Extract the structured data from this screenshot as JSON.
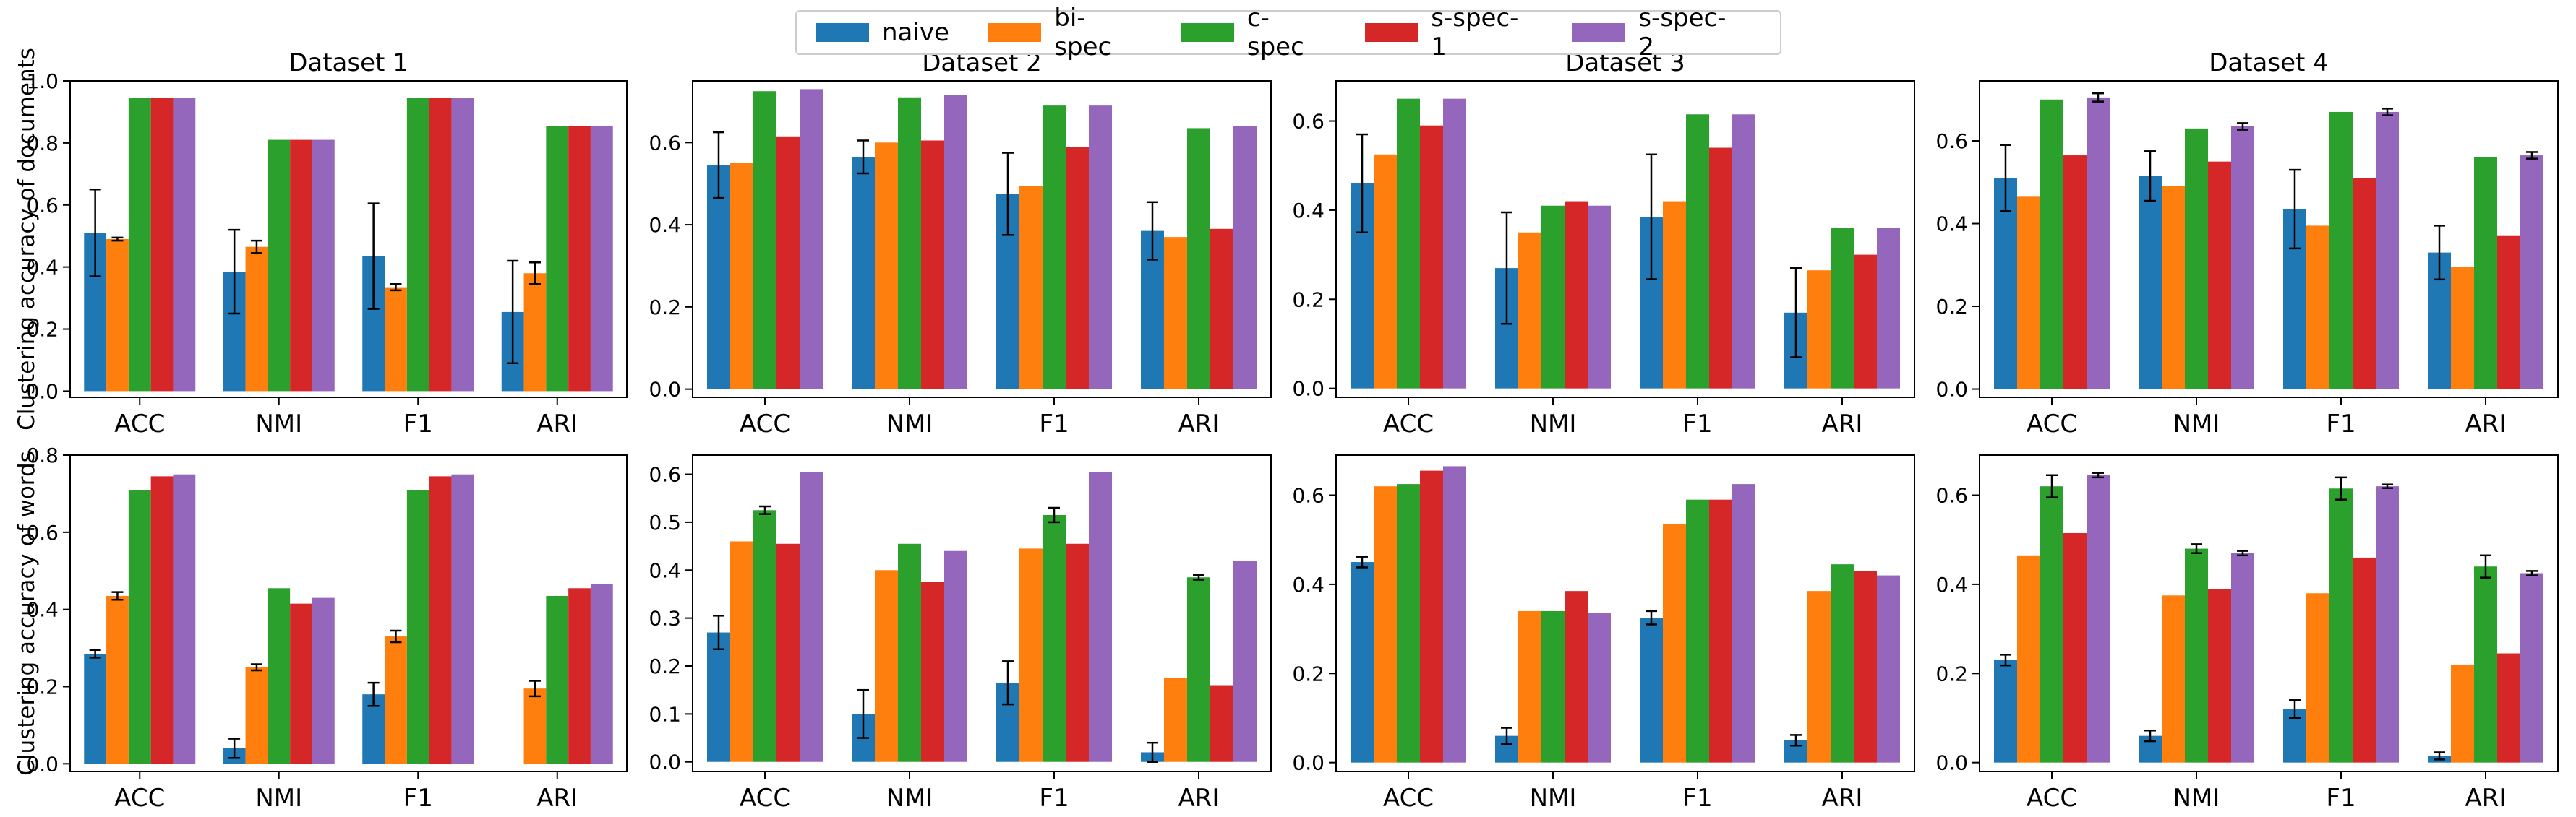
{
  "legend": [
    {
      "name": "naive",
      "color": "#1f77b4"
    },
    {
      "name": "bi-spec",
      "color": "#ff7f0e"
    },
    {
      "name": "c-spec",
      "color": "#2ca02c"
    },
    {
      "name": "s-spec-1",
      "color": "#d62728"
    },
    {
      "name": "s-spec-2",
      "color": "#9467bd"
    }
  ],
  "row_labels": [
    "Clustering accuracy of documents",
    "Clustering accuracy of words"
  ],
  "chart_data": [
    {
      "type": "bar",
      "title": "Dataset 1",
      "ylabel": "Clustering accuracy of documents",
      "categories": [
        "ACC",
        "NMI",
        "F1",
        "ARI"
      ],
      "ylim": [
        -0.02,
        1.0
      ],
      "yticks": [
        0.0,
        0.2,
        0.4,
        0.6,
        0.8,
        1.0
      ],
      "series": [
        {
          "name": "naive",
          "values": [
            0.51,
            0.385,
            0.435,
            0.255
          ],
          "errors": [
            0.14,
            0.135,
            0.17,
            0.165
          ]
        },
        {
          "name": "bi-spec",
          "values": [
            0.49,
            0.465,
            0.335,
            0.38
          ],
          "errors": [
            0.005,
            0.02,
            0.01,
            0.035
          ]
        },
        {
          "name": "c-spec",
          "values": [
            0.945,
            0.81,
            0.945,
            0.855
          ],
          "errors": [
            0,
            0,
            0,
            0
          ]
        },
        {
          "name": "s-spec-1",
          "values": [
            0.945,
            0.81,
            0.945,
            0.855
          ],
          "errors": [
            0,
            0,
            0,
            0
          ]
        },
        {
          "name": "s-spec-2",
          "values": [
            0.945,
            0.81,
            0.945,
            0.855
          ],
          "errors": [
            0,
            0,
            0,
            0
          ]
        }
      ]
    },
    {
      "type": "bar",
      "title": "Dataset 2",
      "ylabel": "",
      "categories": [
        "ACC",
        "NMI",
        "F1",
        "ARI"
      ],
      "ylim": [
        -0.02,
        0.75
      ],
      "yticks": [
        0.0,
        0.2,
        0.4,
        0.6
      ],
      "series": [
        {
          "name": "naive",
          "values": [
            0.545,
            0.565,
            0.475,
            0.385
          ],
          "errors": [
            0.08,
            0.04,
            0.1,
            0.07
          ]
        },
        {
          "name": "bi-spec",
          "values": [
            0.55,
            0.6,
            0.495,
            0.37
          ],
          "errors": [
            0,
            0,
            0,
            0
          ]
        },
        {
          "name": "c-spec",
          "values": [
            0.725,
            0.71,
            0.69,
            0.635
          ],
          "errors": [
            0,
            0,
            0,
            0
          ]
        },
        {
          "name": "s-spec-1",
          "values": [
            0.615,
            0.605,
            0.59,
            0.39
          ],
          "errors": [
            0,
            0,
            0,
            0
          ]
        },
        {
          "name": "s-spec-2",
          "values": [
            0.73,
            0.715,
            0.69,
            0.64
          ],
          "errors": [
            0,
            0,
            0,
            0
          ]
        }
      ]
    },
    {
      "type": "bar",
      "title": "Dataset 3",
      "ylabel": "",
      "categories": [
        "ACC",
        "NMI",
        "F1",
        "ARI"
      ],
      "ylim": [
        -0.02,
        0.69
      ],
      "yticks": [
        0.0,
        0.2,
        0.4,
        0.6
      ],
      "series": [
        {
          "name": "naive",
          "values": [
            0.46,
            0.27,
            0.385,
            0.17
          ],
          "errors": [
            0.11,
            0.125,
            0.14,
            0.1
          ]
        },
        {
          "name": "bi-spec",
          "values": [
            0.525,
            0.35,
            0.42,
            0.265
          ],
          "errors": [
            0,
            0,
            0,
            0
          ]
        },
        {
          "name": "c-spec",
          "values": [
            0.65,
            0.41,
            0.615,
            0.36
          ],
          "errors": [
            0,
            0,
            0,
            0
          ]
        },
        {
          "name": "s-spec-1",
          "values": [
            0.59,
            0.42,
            0.54,
            0.3
          ],
          "errors": [
            0,
            0,
            0,
            0
          ]
        },
        {
          "name": "s-spec-2",
          "values": [
            0.65,
            0.41,
            0.615,
            0.36
          ],
          "errors": [
            0,
            0,
            0,
            0
          ]
        }
      ]
    },
    {
      "type": "bar",
      "title": "Dataset 4",
      "ylabel": "",
      "categories": [
        "ACC",
        "NMI",
        "F1",
        "ARI"
      ],
      "ylim": [
        -0.02,
        0.745
      ],
      "yticks": [
        0.0,
        0.2,
        0.4,
        0.6
      ],
      "series": [
        {
          "name": "naive",
          "values": [
            0.51,
            0.515,
            0.435,
            0.33
          ],
          "errors": [
            0.08,
            0.06,
            0.095,
            0.065
          ]
        },
        {
          "name": "bi-spec",
          "values": [
            0.465,
            0.49,
            0.395,
            0.295
          ],
          "errors": [
            0,
            0,
            0,
            0
          ]
        },
        {
          "name": "c-spec",
          "values": [
            0.7,
            0.63,
            0.67,
            0.56
          ],
          "errors": [
            0,
            0,
            0,
            0
          ]
        },
        {
          "name": "s-spec-1",
          "values": [
            0.565,
            0.55,
            0.51,
            0.37
          ],
          "errors": [
            0,
            0,
            0,
            0
          ]
        },
        {
          "name": "s-spec-2",
          "values": [
            0.705,
            0.635,
            0.67,
            0.565
          ],
          "errors": [
            0.01,
            0.008,
            0.008,
            0.008
          ]
        }
      ]
    },
    {
      "type": "bar",
      "title": "",
      "ylabel": "Clustering accuracy of words",
      "categories": [
        "ACC",
        "NMI",
        "F1",
        "ARI"
      ],
      "ylim": [
        -0.02,
        0.8
      ],
      "yticks": [
        0.0,
        0.2,
        0.4,
        0.6,
        0.8
      ],
      "series": [
        {
          "name": "naive",
          "values": [
            0.285,
            0.04,
            0.18,
            0.0
          ],
          "errors": [
            0.01,
            0.025,
            0.03,
            0
          ]
        },
        {
          "name": "bi-spec",
          "values": [
            0.435,
            0.25,
            0.33,
            0.195
          ],
          "errors": [
            0.01,
            0.008,
            0.015,
            0.02
          ]
        },
        {
          "name": "c-spec",
          "values": [
            0.71,
            0.455,
            0.71,
            0.435
          ],
          "errors": [
            0,
            0,
            0,
            0
          ]
        },
        {
          "name": "s-spec-1",
          "values": [
            0.745,
            0.415,
            0.745,
            0.455
          ],
          "errors": [
            0,
            0,
            0,
            0
          ]
        },
        {
          "name": "s-spec-2",
          "values": [
            0.75,
            0.43,
            0.75,
            0.465
          ],
          "errors": [
            0,
            0,
            0,
            0
          ]
        }
      ]
    },
    {
      "type": "bar",
      "title": "",
      "ylabel": "",
      "categories": [
        "ACC",
        "NMI",
        "F1",
        "ARI"
      ],
      "ylim": [
        -0.02,
        0.64
      ],
      "yticks": [
        0.0,
        0.1,
        0.2,
        0.3,
        0.4,
        0.5,
        0.6
      ],
      "series": [
        {
          "name": "naive",
          "values": [
            0.27,
            0.1,
            0.165,
            0.02
          ],
          "errors": [
            0.035,
            0.05,
            0.045,
            0.02
          ]
        },
        {
          "name": "bi-spec",
          "values": [
            0.46,
            0.4,
            0.445,
            0.175
          ],
          "errors": [
            0,
            0,
            0,
            0
          ]
        },
        {
          "name": "c-spec",
          "values": [
            0.525,
            0.455,
            0.515,
            0.385
          ],
          "errors": [
            0.008,
            0,
            0.015,
            0.005
          ]
        },
        {
          "name": "s-spec-1",
          "values": [
            0.455,
            0.375,
            0.455,
            0.16
          ],
          "errors": [
            0,
            0,
            0,
            0
          ]
        },
        {
          "name": "s-spec-2",
          "values": [
            0.605,
            0.44,
            0.605,
            0.42
          ],
          "errors": [
            0,
            0,
            0,
            0
          ]
        }
      ]
    },
    {
      "type": "bar",
      "title": "",
      "ylabel": "",
      "categories": [
        "ACC",
        "NMI",
        "F1",
        "ARI"
      ],
      "ylim": [
        -0.02,
        0.69
      ],
      "yticks": [
        0.0,
        0.2,
        0.4,
        0.6
      ],
      "series": [
        {
          "name": "naive",
          "values": [
            0.45,
            0.06,
            0.325,
            0.05
          ],
          "errors": [
            0.012,
            0.018,
            0.015,
            0.012
          ]
        },
        {
          "name": "bi-spec",
          "values": [
            0.62,
            0.34,
            0.535,
            0.385
          ],
          "errors": [
            0,
            0,
            0,
            0
          ]
        },
        {
          "name": "c-spec",
          "values": [
            0.625,
            0.34,
            0.59,
            0.445
          ],
          "errors": [
            0,
            0,
            0,
            0
          ]
        },
        {
          "name": "s-spec-1",
          "values": [
            0.655,
            0.385,
            0.59,
            0.43
          ],
          "errors": [
            0,
            0,
            0,
            0
          ]
        },
        {
          "name": "s-spec-2",
          "values": [
            0.665,
            0.335,
            0.625,
            0.42
          ],
          "errors": [
            0,
            0,
            0,
            0
          ]
        }
      ]
    },
    {
      "type": "bar",
      "title": "",
      "ylabel": "",
      "categories": [
        "ACC",
        "NMI",
        "F1",
        "ARI"
      ],
      "ylim": [
        -0.02,
        0.69
      ],
      "yticks": [
        0.0,
        0.2,
        0.4,
        0.6
      ],
      "series": [
        {
          "name": "naive",
          "values": [
            0.23,
            0.06,
            0.12,
            0.015
          ],
          "errors": [
            0.012,
            0.012,
            0.02,
            0.008
          ]
        },
        {
          "name": "bi-spec",
          "values": [
            0.465,
            0.375,
            0.38,
            0.22
          ],
          "errors": [
            0,
            0,
            0,
            0
          ]
        },
        {
          "name": "c-spec",
          "values": [
            0.62,
            0.48,
            0.615,
            0.44
          ],
          "errors": [
            0.025,
            0.01,
            0.025,
            0.025
          ]
        },
        {
          "name": "s-spec-1",
          "values": [
            0.515,
            0.39,
            0.46,
            0.245
          ],
          "errors": [
            0,
            0,
            0,
            0
          ]
        },
        {
          "name": "s-spec-2",
          "values": [
            0.645,
            0.47,
            0.62,
            0.425
          ],
          "errors": [
            0.005,
            0.005,
            0.004,
            0.005
          ]
        }
      ]
    }
  ]
}
